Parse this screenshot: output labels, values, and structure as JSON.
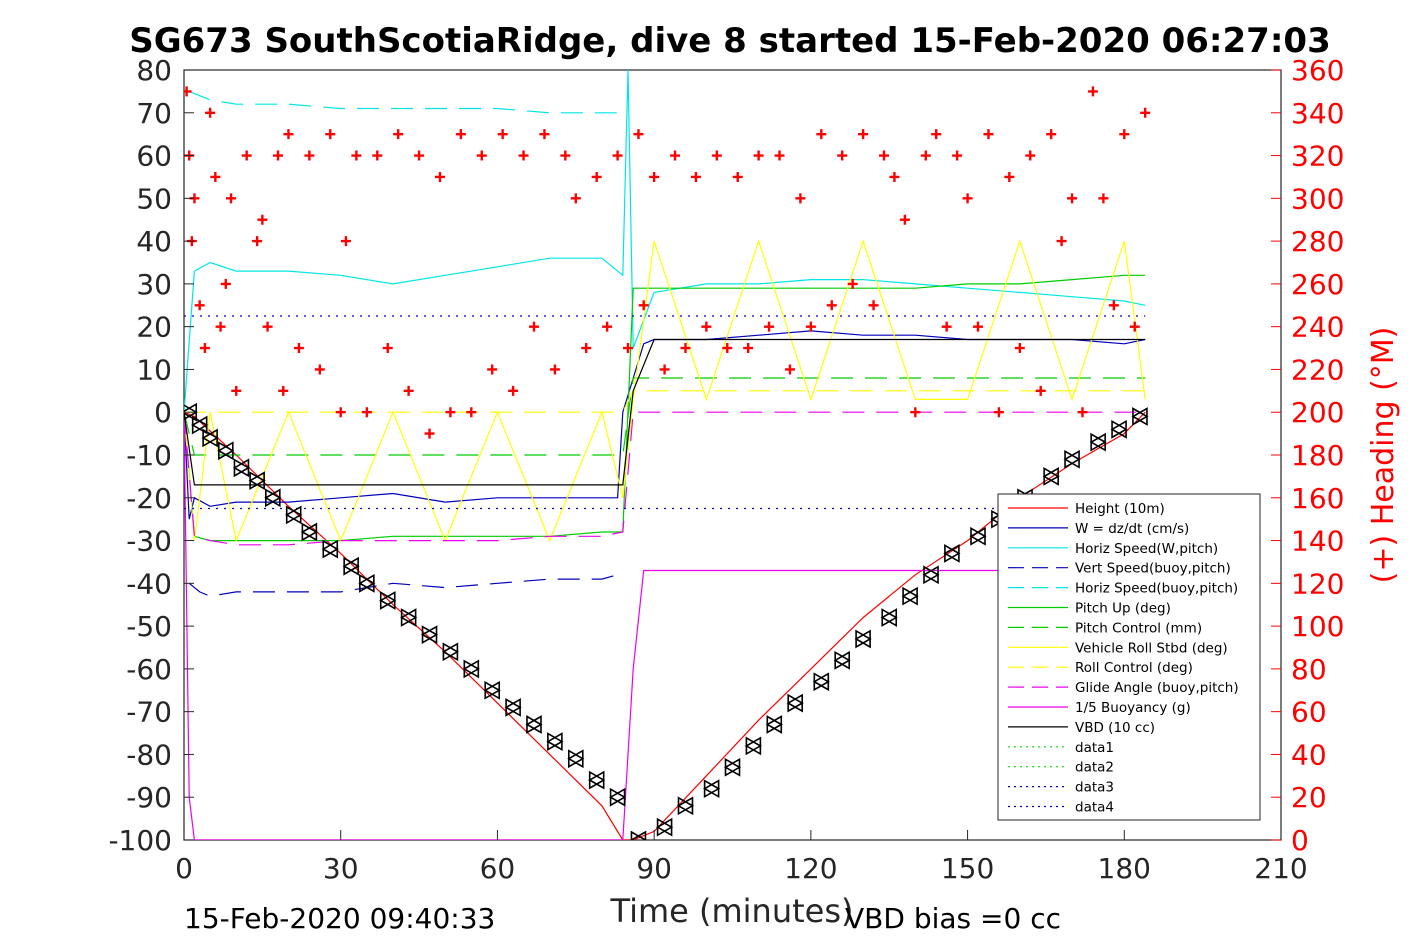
{
  "title": "SG673 SouthScotiaRidge, dive 8 started 15-Feb-2020 06:27:03",
  "footer": {
    "timestamp": "15-Feb-2020 09:40:33",
    "vbd_bias": "VBD bias =0 cc"
  },
  "chart_data": {
    "type": "line",
    "xlabel": "Time (minutes)",
    "ylabel": "",
    "y2label": "(+) Heading (°M)",
    "xlim": [
      0,
      210
    ],
    "ylim": [
      -100,
      80
    ],
    "y2lim": [
      0,
      360
    ],
    "xticks": [
      "0",
      "30",
      "60",
      "90",
      "120",
      "150",
      "180",
      "210"
    ],
    "yticks": [
      "80",
      "70",
      "60",
      "50",
      "40",
      "30",
      "20",
      "10",
      "0",
      "-10",
      "-20",
      "-30",
      "-40",
      "-50",
      "-60",
      "-70",
      "-80",
      "-90",
      "-100"
    ],
    "y2ticks": [
      "360",
      "340",
      "320",
      "300",
      "280",
      "260",
      "240",
      "220",
      "200",
      "180",
      "160",
      "140",
      "120",
      "100",
      "80",
      "60",
      "40",
      "20",
      "0"
    ],
    "legend_position": "bottom-right",
    "grid": false,
    "series": [
      {
        "name": "Height (10m)",
        "color": "#ff0000",
        "style": "solid",
        "x": [
          0,
          2,
          10,
          20,
          30,
          40,
          50,
          60,
          70,
          80,
          84,
          86,
          90,
          100,
          110,
          120,
          130,
          140,
          150,
          160,
          170,
          180,
          184
        ],
        "y": [
          0,
          -1,
          -10,
          -22,
          -33,
          -45,
          -56,
          -68,
          -80,
          -92,
          -100,
          -100,
          -98,
          -85,
          -72,
          -60,
          -48,
          -38,
          -30,
          -20,
          -12,
          -5,
          0
        ]
      },
      {
        "name": "W = dz/dt (cm/s)",
        "color": "#0000bb",
        "style": "solid",
        "x": [
          0,
          1,
          2,
          5,
          10,
          20,
          30,
          40,
          50,
          60,
          70,
          80,
          83,
          84,
          88,
          90,
          100,
          110,
          120,
          130,
          140,
          150,
          160,
          170,
          180,
          184
        ],
        "y": [
          0,
          -25,
          -20,
          -22,
          -21,
          -21,
          -20,
          -19,
          -21,
          -20,
          -20,
          -20,
          -20,
          0,
          16,
          17,
          17,
          18,
          19,
          18,
          18,
          17,
          17,
          17,
          16,
          17
        ]
      },
      {
        "name": "Horiz Speed(W,pitch)",
        "color": "#00e5e5",
        "style": "solid",
        "x": [
          0,
          2,
          5,
          10,
          20,
          30,
          40,
          50,
          60,
          70,
          80,
          84,
          85,
          86,
          90,
          100,
          110,
          120,
          130,
          140,
          150,
          160,
          170,
          180,
          184
        ],
        "y": [
          0,
          33,
          35,
          33,
          33,
          32,
          30,
          32,
          34,
          36,
          36,
          32,
          80,
          15,
          28,
          30,
          30,
          31,
          31,
          30,
          29,
          28,
          27,
          26,
          25
        ]
      },
      {
        "name": "Vert Speed(buoy,pitch)",
        "color": "#0000bb",
        "style": "dashed",
        "x": [
          1,
          3,
          5,
          10,
          20,
          30,
          40,
          50,
          60,
          70,
          80,
          83
        ],
        "y": [
          -40,
          -42,
          -43,
          -42,
          -42,
          -42,
          -40,
          -41,
          -40,
          -39,
          -39,
          -38
        ]
      },
      {
        "name": "Horiz Speed(buoy,pitch)",
        "color": "#00e5e5",
        "style": "dashed",
        "x": [
          1,
          5,
          10,
          20,
          30,
          40,
          50,
          60,
          70,
          80,
          84
        ],
        "y": [
          75,
          73,
          72,
          72,
          71,
          71,
          71,
          71,
          70,
          70,
          70
        ]
      },
      {
        "name": "Pitch Up (deg)",
        "color": "#00cc00",
        "style": "solid",
        "x": [
          0,
          2,
          5,
          10,
          20,
          30,
          40,
          50,
          60,
          70,
          80,
          84,
          86,
          90,
          100,
          110,
          120,
          130,
          140,
          150,
          160,
          170,
          180,
          184
        ],
        "y": [
          0,
          -29,
          -30,
          -30,
          -30,
          -30,
          -29,
          -29,
          -29,
          -29,
          -28,
          -28,
          29,
          29,
          29,
          29,
          29,
          29,
          29,
          30,
          30,
          31,
          32,
          32
        ]
      },
      {
        "name": "Pitch Control (mm)",
        "color": "#00cc00",
        "style": "dashed",
        "x": [
          0,
          2,
          84,
          86,
          184
        ],
        "y": [
          0,
          -10,
          -10,
          8,
          8
        ]
      },
      {
        "name": "Vehicle Roll Stbd (deg)",
        "color": "#ffff00",
        "style": "solid",
        "x": [
          0,
          2,
          5,
          10,
          20,
          30,
          40,
          50,
          60,
          70,
          80,
          84,
          86,
          90,
          100,
          110,
          120,
          130,
          140,
          150,
          160,
          170,
          180,
          184
        ],
        "y": [
          0,
          -30,
          0,
          -30,
          0,
          -30,
          0,
          -30,
          0,
          -30,
          0,
          -20,
          3,
          40,
          3,
          40,
          3,
          40,
          3,
          3,
          40,
          3,
          40,
          3
        ]
      },
      {
        "name": "Roll Control (deg)",
        "color": "#ffff00",
        "style": "dashed",
        "x": [
          0,
          84,
          86,
          184
        ],
        "y": [
          0,
          0,
          5,
          5
        ]
      },
      {
        "name": "Glide Angle (buoy,pitch)",
        "color": "#ee00ee",
        "style": "dashed",
        "x": [
          0,
          2,
          5,
          10,
          20,
          30,
          40,
          50,
          60,
          70,
          80,
          84,
          86,
          184
        ],
        "y": [
          0,
          -29,
          -30,
          -31,
          -31,
          -30,
          -30,
          -30,
          -30,
          -29,
          -29,
          -28,
          0,
          0
        ]
      },
      {
        "name": "1/5 Buoyancy (g)",
        "color": "#ee00ee",
        "style": "solid",
        "x": [
          0,
          1,
          2,
          84,
          86,
          88,
          120,
          150,
          184
        ],
        "y": [
          0,
          -90,
          -100,
          -100,
          -60,
          -37,
          -37,
          -37,
          -37
        ]
      },
      {
        "name": "VBD (10 cc)",
        "color": "#000000",
        "style": "solid",
        "x": [
          0,
          2,
          84,
          86,
          90,
          184
        ],
        "y": [
          0,
          -17,
          -17,
          5,
          17,
          17
        ]
      },
      {
        "name": "data1",
        "color": "#00dd00",
        "style": "dotted",
        "x": [],
        "y": []
      },
      {
        "name": "data2",
        "color": "#00dd00",
        "style": "dotted",
        "x": [],
        "y": []
      },
      {
        "name": "data3",
        "color": "#0000bb",
        "style": "dotted",
        "x": [
          0,
          184
        ],
        "y": [
          22.5,
          22.5
        ]
      },
      {
        "name": "data4",
        "color": "#0000bb",
        "style": "dotted",
        "x": [
          0,
          184
        ],
        "y": [
          -22.5,
          -22.5
        ]
      }
    ],
    "depth_markers": {
      "color": "#000000",
      "x": [
        1,
        3,
        5,
        8,
        11,
        14,
        17,
        21,
        24,
        28,
        32,
        35,
        39,
        43,
        47,
        51,
        55,
        59,
        63,
        67,
        71,
        75,
        79,
        83,
        87,
        92,
        96,
        101,
        105,
        109,
        113,
        117,
        122,
        126,
        130,
        135,
        139,
        143,
        147,
        152,
        156,
        161,
        166,
        170,
        175,
        179,
        183
      ],
      "y": [
        0,
        -3,
        -6,
        -9,
        -13,
        -16,
        -20,
        -24,
        -28,
        -32,
        -36,
        -40,
        -44,
        -48,
        -52,
        -56,
        -60,
        -65,
        -69,
        -73,
        -77,
        -81,
        -86,
        -90,
        -100,
        -97,
        -92,
        -88,
        -83,
        -78,
        -73,
        -68,
        -63,
        -58,
        -53,
        -48,
        -43,
        -38,
        -33,
        -29,
        -25,
        -20,
        -15,
        -11,
        -7,
        -4,
        -1
      ]
    },
    "heading": {
      "color": "#ff0000",
      "marker": "+",
      "axis": "right",
      "x": [
        0.5,
        1,
        1.5,
        2,
        3,
        4,
        5,
        6,
        7,
        8,
        9,
        10,
        12,
        14,
        15,
        16,
        18,
        19,
        20,
        22,
        24,
        26,
        28,
        30,
        31,
        33,
        35,
        37,
        39,
        41,
        43,
        45,
        47,
        49,
        51,
        53,
        55,
        57,
        59,
        61,
        63,
        65,
        67,
        69,
        71,
        73,
        75,
        77,
        79,
        81,
        83,
        85,
        87,
        88,
        90,
        92,
        94,
        96,
        98,
        100,
        102,
        104,
        106,
        108,
        110,
        112,
        114,
        116,
        118,
        120,
        122,
        124,
        126,
        128,
        130,
        132,
        134,
        136,
        138,
        140,
        142,
        144,
        146,
        148,
        150,
        152,
        154,
        156,
        158,
        160,
        162,
        164,
        166,
        168,
        170,
        172,
        174,
        176,
        178,
        180,
        182,
        184
      ],
      "y": [
        350,
        320,
        280,
        300,
        250,
        230,
        340,
        310,
        240,
        260,
        300,
        210,
        320,
        280,
        290,
        240,
        320,
        210,
        330,
        230,
        320,
        220,
        330,
        200,
        280,
        320,
        200,
        320,
        230,
        330,
        210,
        320,
        190,
        310,
        200,
        330,
        200,
        320,
        220,
        330,
        210,
        320,
        240,
        330,
        220,
        320,
        300,
        230,
        310,
        240,
        320,
        230,
        330,
        250,
        310,
        220,
        320,
        230,
        310,
        240,
        320,
        230,
        310,
        230,
        320,
        240,
        320,
        220,
        300,
        240,
        330,
        250,
        320,
        260,
        330,
        250,
        320,
        310,
        290,
        200,
        320,
        330,
        240,
        320,
        300,
        240,
        330,
        200,
        310,
        230,
        320,
        210,
        330,
        280,
        300,
        200,
        350,
        300,
        250,
        330,
        240,
        340
      ]
    }
  }
}
